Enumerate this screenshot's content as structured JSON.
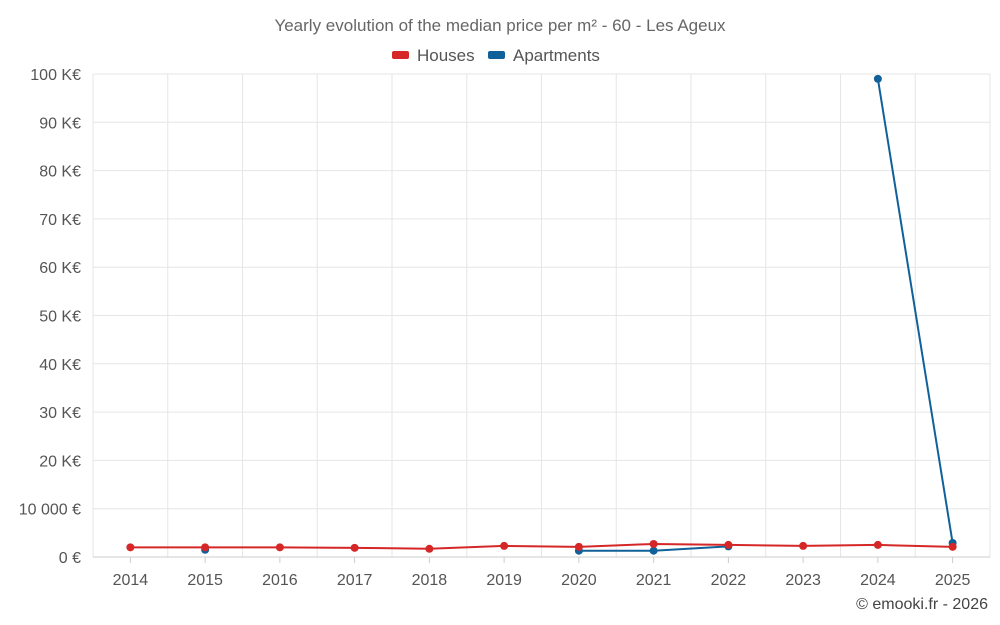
{
  "chart_data": {
    "type": "line",
    "title": "Yearly evolution of the median price per m² - 60 - Les Ageux",
    "xlabel": "",
    "ylabel": "",
    "categories": [
      "2014",
      "2015",
      "2016",
      "2017",
      "2018",
      "2019",
      "2020",
      "2021",
      "2022",
      "2023",
      "2024",
      "2025"
    ],
    "ylim": [
      0,
      100000
    ],
    "y_ticks": [
      {
        "value": 0,
        "label": "0 €"
      },
      {
        "value": 10000,
        "label": "10 000 €"
      },
      {
        "value": 20000,
        "label": "20 K€"
      },
      {
        "value": 30000,
        "label": "30 K€"
      },
      {
        "value": 40000,
        "label": "40 K€"
      },
      {
        "value": 50000,
        "label": "50 K€"
      },
      {
        "value": 60000,
        "label": "60 K€"
      },
      {
        "value": 70000,
        "label": "70 K€"
      },
      {
        "value": 80000,
        "label": "80 K€"
      },
      {
        "value": 90000,
        "label": "90 K€"
      },
      {
        "value": 100000,
        "label": "100 K€"
      }
    ],
    "grid": true,
    "legend_position": "top",
    "series": [
      {
        "name": "Houses",
        "color": "#d62728",
        "values": [
          2000,
          2000,
          2000,
          1900,
          1700,
          2300,
          2100,
          2700,
          2500,
          2300,
          2500,
          2100
        ]
      },
      {
        "name": "Apartments",
        "color": "#106199",
        "values": [
          null,
          1500,
          null,
          null,
          null,
          null,
          1300,
          1300,
          2200,
          null,
          99000,
          2900
        ]
      }
    ]
  },
  "credit": "© emooki.fr - 2026"
}
